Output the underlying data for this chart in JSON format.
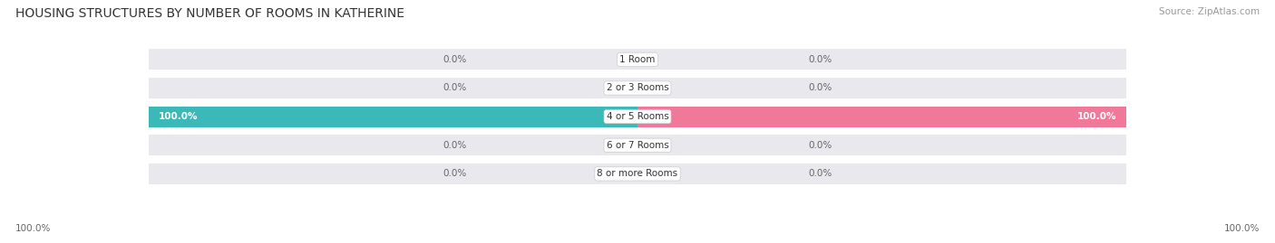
{
  "title": "HOUSING STRUCTURES BY NUMBER OF ROOMS IN KATHERINE",
  "source": "Source: ZipAtlas.com",
  "categories": [
    "1 Room",
    "2 or 3 Rooms",
    "4 or 5 Rooms",
    "6 or 7 Rooms",
    "8 or more Rooms"
  ],
  "owner_values": [
    0.0,
    0.0,
    100.0,
    0.0,
    0.0
  ],
  "renter_values": [
    0.0,
    0.0,
    100.0,
    0.0,
    0.0
  ],
  "owner_color": "#3BB8B8",
  "renter_color": "#F07898",
  "bar_bg_color": "#E8E8ED",
  "bar_height": 0.72,
  "title_fontsize": 10,
  "label_fontsize": 7.5,
  "category_fontsize": 7.5,
  "legend_fontsize": 8,
  "source_fontsize": 7.5,
  "background_color": "#FFFFFF",
  "value_color_zero": "#666666",
  "value_color_nonzero": "#FFFFFF"
}
